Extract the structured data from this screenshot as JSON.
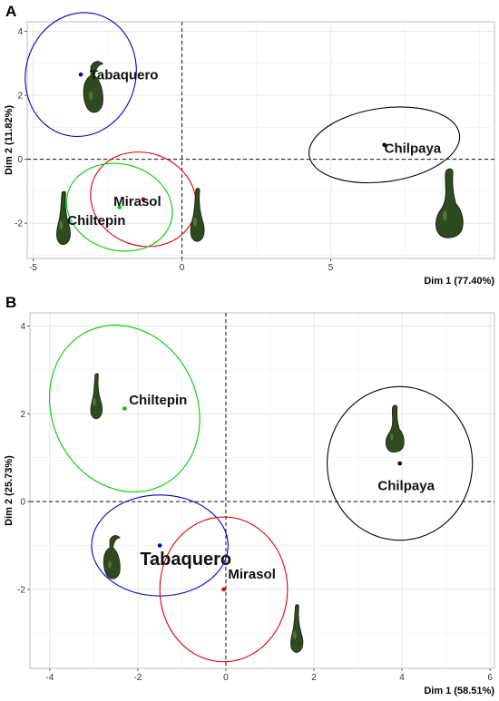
{
  "chart_data": [
    {
      "panel": "A",
      "type": "scatter",
      "xlabel": "Dim 1 (77.40%)",
      "ylabel": "Dim 2 (11.82%)",
      "xlim": [
        -5.2,
        10.5
      ],
      "ylim": [
        -3.1,
        4.3
      ],
      "xticks": [
        -5,
        0,
        5
      ],
      "yticks": [
        -4,
        -2,
        0,
        2,
        4
      ],
      "points": [
        {
          "label": "Tabaquero",
          "x": -3.4,
          "y": 2.65,
          "color": "#0000cc",
          "ellipse": {
            "rx": 1.85,
            "ry": 1.95,
            "rot": 15
          },
          "label_dx": 0.3,
          "label_dy": 0.0,
          "fontsize": 15
        },
        {
          "label": "Chilpaya",
          "x": 6.8,
          "y": 0.45,
          "color": "#000000",
          "ellipse": {
            "rx": 2.55,
            "ry": 1.15,
            "rot": -8
          },
          "label_dx": 0.0,
          "label_dy": -0.1,
          "fontsize": 15
        },
        {
          "label": "Mirasol",
          "x": -1.3,
          "y": -1.25,
          "color": "#e00000",
          "ellipse": {
            "rx": 1.8,
            "ry": 1.45,
            "rot": 20
          },
          "label_dx": -1.0,
          "label_dy": -0.05,
          "fontsize": 15
        },
        {
          "label": "Chiltepin",
          "x": -2.1,
          "y": -1.5,
          "color": "#00cc00",
          "ellipse": {
            "rx": 1.8,
            "ry": 1.35,
            "rot": 15
          },
          "label_dx": -1.75,
          "label_dy": -0.4,
          "fontsize": 15
        }
      ]
    },
    {
      "panel": "B",
      "type": "scatter",
      "xlabel": "Dim 1 (58.51%)",
      "ylabel": "Dim 2 (25.73%)",
      "xlim": [
        -4.45,
        6.1
      ],
      "ylim": [
        -3.8,
        4.3
      ],
      "xticks": [
        -4,
        -2,
        0,
        2,
        4,
        6
      ],
      "yticks": [
        -2,
        0,
        2,
        4
      ],
      "points": [
        {
          "label": "Chiltepin",
          "x": -2.3,
          "y": 2.12,
          "color": "#00cc00",
          "ellipse": {
            "rx": 1.65,
            "ry": 1.95,
            "rot": -25
          },
          "label_dx": 0.1,
          "label_dy": 0.2,
          "fontsize": 15
        },
        {
          "label": "Chilpaya",
          "x": 3.95,
          "y": 0.87,
          "color": "#000000",
          "ellipse": {
            "rx": 1.65,
            "ry": 1.75,
            "rot": 0
          },
          "label_dx": -0.5,
          "label_dy": -0.5,
          "fontsize": 15
        },
        {
          "label": "Tabaquero",
          "x": -1.5,
          "y": -1.0,
          "color": "#0000cc",
          "ellipse": {
            "rx": 1.55,
            "ry": 1.15,
            "rot": 0
          },
          "label_dx": -0.45,
          "label_dy": -0.3,
          "fontsize": 20
        },
        {
          "label": "Mirasol",
          "x": -0.05,
          "y": -2.0,
          "color": "#e00000",
          "ellipse": {
            "rx": 1.45,
            "ry": 1.65,
            "rot": 0
          },
          "label_dx": 0.1,
          "label_dy": 0.35,
          "fontsize": 15
        }
      ]
    }
  ],
  "peppers": [
    {
      "panel": 0,
      "x": -3.0,
      "y": 2.05,
      "shape": "round",
      "scale": 1.0
    },
    {
      "panel": 0,
      "x": -4.0,
      "y": -2.0,
      "shape": "slim",
      "scale": 1.0
    },
    {
      "panel": 0,
      "x": 0.5,
      "y": -1.9,
      "shape": "slim",
      "scale": 1.0
    },
    {
      "panel": 0,
      "x": 8.9,
      "y": -1.7,
      "shape": "bulb",
      "scale": 1.1
    },
    {
      "panel": 1,
      "x": -2.95,
      "y": 2.3,
      "shape": "slim",
      "scale": 0.85
    },
    {
      "panel": 1,
      "x": 3.8,
      "y": 1.5,
      "shape": "bulb",
      "scale": 0.75
    },
    {
      "panel": 1,
      "x": -2.6,
      "y": -1.4,
      "shape": "round",
      "scale": 0.85
    },
    {
      "panel": 1,
      "x": 1.6,
      "y": -3.0,
      "shape": "slim",
      "scale": 0.9
    }
  ],
  "panel_letters": [
    "A",
    "B"
  ]
}
